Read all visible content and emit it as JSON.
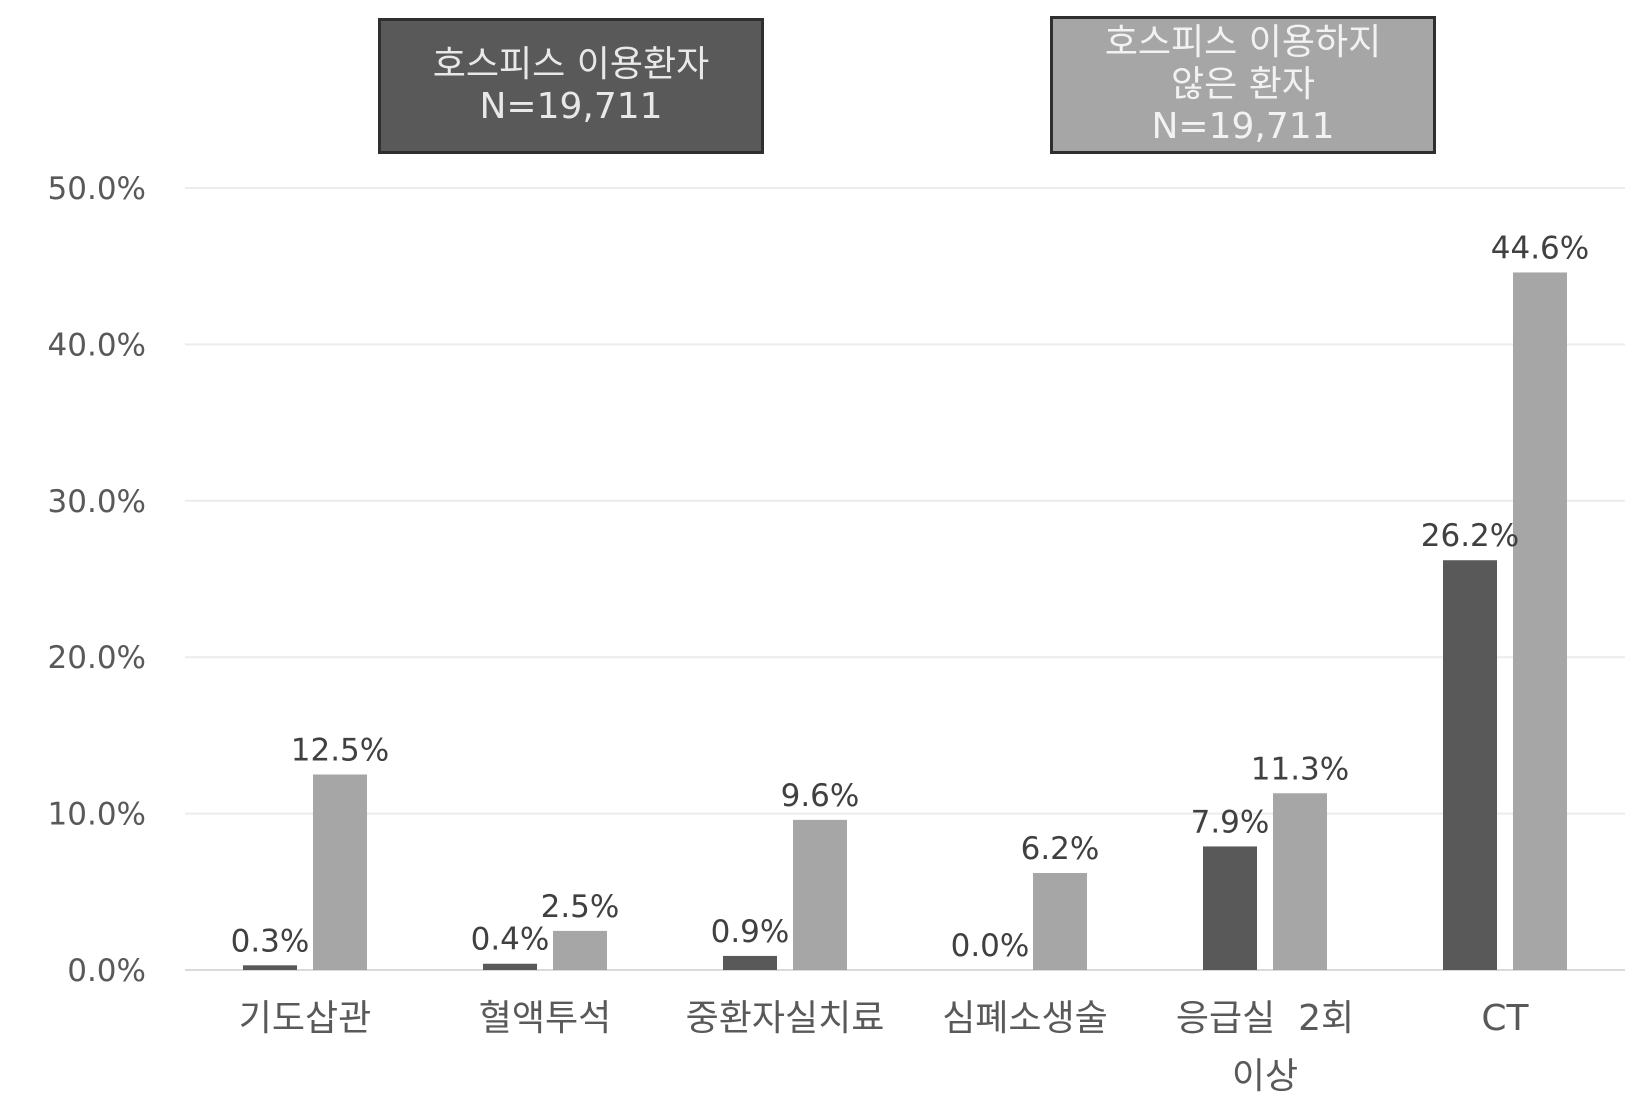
{
  "chart_data": {
    "type": "bar",
    "title": "",
    "xlabel": "",
    "ylabel": "",
    "ylim": [
      0,
      50
    ],
    "yticks": [
      "0.0%",
      "10.0%",
      "20.0%",
      "30.0%",
      "40.0%",
      "50.0%"
    ],
    "grid": true,
    "legend_position": "top",
    "categories": [
      [
        "기도삽관"
      ],
      [
        "혈액투석"
      ],
      [
        "중환자실치료"
      ],
      [
        "심폐소생술"
      ],
      [
        "응급실  2회",
        "이상"
      ],
      [
        "CT"
      ]
    ],
    "series": [
      {
        "legend": [
          "호스피스 이용환자",
          "N=19,711"
        ],
        "color": "#595959",
        "values": [
          0.3,
          0.4,
          0.9,
          0.0,
          7.9,
          26.2
        ],
        "labels": [
          "0.3%",
          "0.4%",
          "0.9%",
          "0.0%",
          "7.9%",
          "26.2%"
        ]
      },
      {
        "legend": [
          "호스피스 이용하지",
          "않은 환자",
          "N=19,711"
        ],
        "color": "#a6a6a6",
        "values": [
          12.5,
          2.5,
          9.6,
          6.2,
          11.3,
          44.6
        ],
        "labels": [
          "12.5%",
          "2.5%",
          "9.6%",
          "6.2%",
          "11.3%",
          "44.6%"
        ]
      }
    ]
  }
}
